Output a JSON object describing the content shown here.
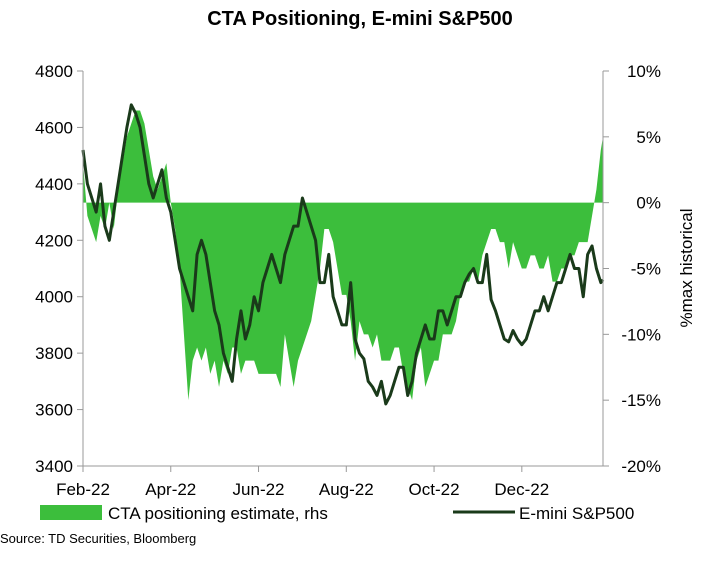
{
  "chart_data": {
    "type": "area",
    "title": "CTA Positioning, E-mini S&P500",
    "x_tick_labels": [
      "Feb-22",
      "Apr-22",
      "Jun-22",
      "Aug-22",
      "Oct-22",
      "Dec-22"
    ],
    "left_axis": {
      "ylabel": "",
      "ylim": [
        3400,
        4800
      ],
      "ticks": [
        "4800",
        "4600",
        "4400",
        "4200",
        "4000",
        "3800",
        "3600",
        "3400"
      ]
    },
    "right_axis": {
      "ylabel": "%max historical",
      "ylim": [
        -20,
        10
      ],
      "ticks": [
        "10%",
        "5%",
        "0%",
        "-5%",
        "-10%",
        "-15%",
        "-20%"
      ]
    },
    "x_axis_months": [
      0,
      2,
      4,
      6,
      8,
      10
    ],
    "x_range_months": [
      0,
      11.85
    ],
    "series": [
      {
        "name": "CTA positioning estimate, rhs",
        "kind": "area",
        "axis": "right",
        "color": "#3cbe3c",
        "x": [
          0.0,
          0.1,
          0.2,
          0.3,
          0.4,
          0.5,
          0.6,
          0.7,
          0.8,
          0.9,
          1.0,
          1.1,
          1.2,
          1.3,
          1.4,
          1.5,
          1.6,
          1.7,
          1.8,
          1.9,
          2.0,
          2.1,
          2.2,
          2.3,
          2.4,
          2.5,
          2.6,
          2.7,
          2.8,
          2.9,
          3.0,
          3.1,
          3.2,
          3.3,
          3.4,
          3.5,
          3.6,
          3.7,
          3.8,
          3.9,
          4.0,
          4.1,
          4.2,
          4.3,
          4.4,
          4.5,
          4.6,
          4.7,
          4.8,
          4.9,
          5.0,
          5.1,
          5.2,
          5.3,
          5.4,
          5.5,
          5.6,
          5.7,
          5.8,
          5.9,
          6.0,
          6.1,
          6.2,
          6.3,
          6.4,
          6.5,
          6.6,
          6.7,
          6.8,
          6.9,
          7.0,
          7.1,
          7.2,
          7.3,
          7.4,
          7.5,
          7.6,
          7.7,
          7.8,
          7.9,
          8.0,
          8.1,
          8.2,
          8.3,
          8.4,
          8.5,
          8.6,
          8.7,
          8.8,
          8.9,
          9.0,
          9.1,
          9.2,
          9.3,
          9.4,
          9.5,
          9.6,
          9.7,
          9.8,
          9.9,
          10.0,
          10.1,
          10.2,
          10.3,
          10.4,
          10.5,
          10.6,
          10.7,
          10.8,
          10.9,
          11.0,
          11.1,
          11.2,
          11.3,
          11.4,
          11.5,
          11.6,
          11.7,
          11.8,
          11.85
        ],
        "values": [
          3,
          -1,
          -2,
          -3,
          -1,
          -2,
          0,
          -2,
          1,
          3,
          5,
          6,
          7,
          7,
          6,
          4,
          2,
          1,
          2,
          3,
          0,
          -2,
          -5,
          -10,
          -15,
          -12,
          -11,
          -12,
          -11,
          -13,
          -12,
          -14,
          -12,
          -13,
          -11,
          -11,
          -13,
          -12,
          -12,
          -12,
          -13,
          -13,
          -13,
          -13,
          -13,
          -14,
          -10,
          -12,
          -14,
          -12,
          -11,
          -10,
          -9,
          -7,
          -5,
          -2,
          -2,
          -3,
          -5,
          -7,
          -7,
          -9,
          -12,
          -9,
          -10,
          -10,
          -11,
          -10,
          -12,
          -12,
          -12,
          -11,
          -11,
          -13,
          -14,
          -15,
          -12,
          -11,
          -14,
          -13,
          -12,
          -12,
          -10,
          -10,
          -10,
          -9,
          -7,
          -6,
          -6,
          -5,
          -6,
          -4,
          -3,
          -2,
          -2,
          -3,
          -3,
          -5,
          -3,
          -4,
          -5,
          -5,
          -4,
          -4,
          -5,
          -5,
          -4,
          -6,
          -6,
          -5,
          -5,
          -4,
          -4,
          -3,
          -3,
          -3,
          -1,
          1,
          4,
          5
        ]
      },
      {
        "name": "E-mini S&P500",
        "kind": "line",
        "axis": "left",
        "color": "#1a3a1a",
        "x": [
          0.0,
          0.1,
          0.2,
          0.3,
          0.4,
          0.5,
          0.6,
          0.7,
          0.8,
          0.9,
          1.0,
          1.1,
          1.2,
          1.3,
          1.4,
          1.5,
          1.6,
          1.7,
          1.8,
          1.9,
          2.0,
          2.1,
          2.2,
          2.3,
          2.4,
          2.5,
          2.6,
          2.7,
          2.8,
          2.9,
          3.0,
          3.1,
          3.2,
          3.3,
          3.4,
          3.5,
          3.6,
          3.7,
          3.8,
          3.9,
          4.0,
          4.1,
          4.2,
          4.3,
          4.4,
          4.5,
          4.6,
          4.7,
          4.8,
          4.9,
          5.0,
          5.1,
          5.2,
          5.3,
          5.4,
          5.5,
          5.6,
          5.7,
          5.8,
          5.9,
          6.0,
          6.1,
          6.2,
          6.3,
          6.4,
          6.5,
          6.6,
          6.7,
          6.8,
          6.9,
          7.0,
          7.1,
          7.2,
          7.3,
          7.4,
          7.5,
          7.6,
          7.7,
          7.8,
          7.9,
          8.0,
          8.1,
          8.2,
          8.3,
          8.4,
          8.5,
          8.6,
          8.7,
          8.8,
          8.9,
          9.0,
          9.1,
          9.2,
          9.3,
          9.4,
          9.5,
          9.6,
          9.7,
          9.8,
          9.9,
          10.0,
          10.1,
          10.2,
          10.3,
          10.4,
          10.5,
          10.6,
          10.7,
          10.8,
          10.9,
          11.0,
          11.1,
          11.2,
          11.3,
          11.4,
          11.5,
          11.6,
          11.7,
          11.8,
          11.85
        ],
        "values": [
          4520,
          4400,
          4350,
          4300,
          4400,
          4250,
          4200,
          4300,
          4400,
          4500,
          4600,
          4680,
          4650,
          4600,
          4500,
          4400,
          4350,
          4400,
          4450,
          4350,
          4300,
          4200,
          4100,
          4050,
          4000,
          3950,
          4150,
          4200,
          4150,
          4050,
          3950,
          3900,
          3800,
          3750,
          3700,
          3850,
          3950,
          3850,
          3900,
          4000,
          3950,
          4050,
          4100,
          4150,
          4100,
          4050,
          4150,
          4200,
          4250,
          4250,
          4350,
          4300,
          4250,
          4200,
          4050,
          4050,
          4150,
          4000,
          3950,
          3900,
          3900,
          4050,
          3850,
          3800,
          3780,
          3700,
          3680,
          3650,
          3700,
          3620,
          3650,
          3700,
          3750,
          3750,
          3650,
          3700,
          3800,
          3850,
          3900,
          3850,
          3850,
          3950,
          3950,
          3900,
          3950,
          4000,
          4000,
          4050,
          4080,
          4100,
          4050,
          4050,
          4150,
          3990,
          3950,
          3900,
          3850,
          3840,
          3880,
          3850,
          3830,
          3850,
          3900,
          3950,
          3950,
          4000,
          3950,
          4000,
          4050,
          4050,
          4100,
          4150,
          4100,
          4100,
          4000,
          4150,
          4180,
          4100,
          4050,
          4060
        ]
      }
    ],
    "source": "Source: TD Securities, Bloomberg"
  }
}
